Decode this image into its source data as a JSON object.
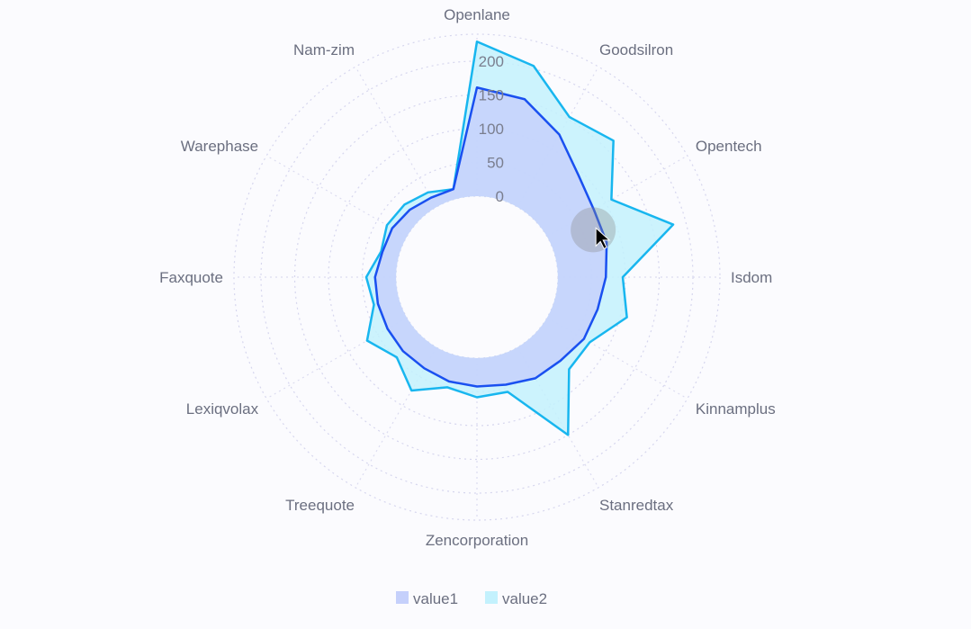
{
  "chart_data": {
    "type": "radar",
    "categories": [
      "Openlane",
      "",
      "Goodsilron",
      "",
      "Opentech",
      "",
      "Isdom",
      "",
      "Kinnamplus",
      "",
      "Stanredtax",
      "",
      "Zencorporation",
      "",
      "Treequote",
      "",
      "Lexiqvolax",
      "",
      "Faxquote",
      "",
      "Warephase",
      "",
      "Nam-zim",
      ""
    ],
    "radial_ticks": [
      0,
      50,
      100,
      150,
      200
    ],
    "rlim": [
      0,
      240
    ],
    "grid": true,
    "inner_hole": true,
    "legend_placement": "bottom",
    "series": [
      {
        "name": "value1",
        "color": "#1a50f0",
        "fill": "#c5d0fb",
        "values": [
          161,
          153,
          124,
          93,
          80,
          79,
          71,
          65,
          63,
          55,
          53,
          45,
          42,
          40,
          36,
          35,
          33,
          32,
          31,
          25,
          25,
          21,
          16,
          15
        ]
      },
      {
        "name": "value2",
        "color": "#18b6ef",
        "fill": "#c3f1fd",
        "values": [
          229,
          204,
          154,
          166,
          110,
          181,
          96,
          110,
          73,
          73,
          150,
          56,
          58,
          49,
          74,
          48,
          68,
          38,
          44,
          27,
          34,
          32,
          25,
          15
        ]
      }
    ],
    "active_point": {
      "series": "value1",
      "category_index": 5
    }
  }
}
